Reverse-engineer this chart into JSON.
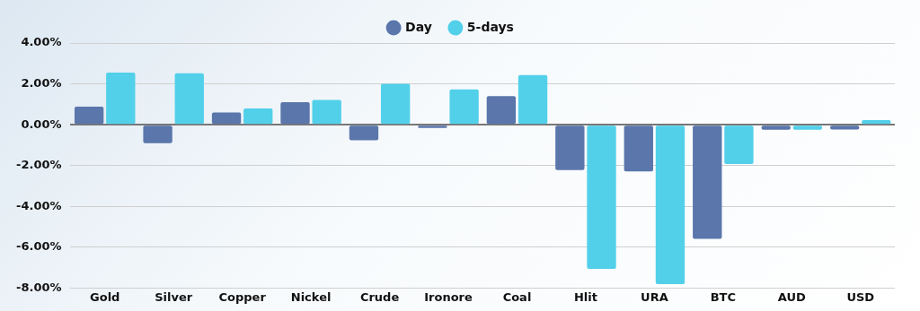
{
  "chart_data": {
    "type": "bar",
    "categories": [
      "Gold",
      "Silver",
      "Copper",
      "Nickel",
      "Crude",
      "Ironore",
      "Coal",
      "Hlit",
      "URA",
      "BTC",
      "AUD",
      "USD"
    ],
    "series": [
      {
        "name": "Day",
        "color": "#5a76ab",
        "values": [
          0.88,
          -0.91,
          0.6,
          1.1,
          -0.76,
          -0.16,
          1.4,
          -2.22,
          -2.29,
          -5.59,
          -0.25,
          -0.24
        ]
      },
      {
        "name": "5-days",
        "color": "#52d0ea",
        "values": [
          2.55,
          2.52,
          0.8,
          1.21,
          2.0,
          1.73,
          2.43,
          -7.06,
          -7.81,
          -1.92,
          -0.25,
          0.22
        ]
      }
    ],
    "ylim": [
      -8,
      4
    ],
    "yticks": [
      {
        "value": -8,
        "label": "-8.00%"
      },
      {
        "value": -6,
        "label": "-6.00%"
      },
      {
        "value": -4,
        "label": "-4.00%"
      },
      {
        "value": -2,
        "label": "-2.00%"
      },
      {
        "value": 0,
        "label": "0.00%"
      },
      {
        "value": 2,
        "label": "2.00%"
      },
      {
        "value": 4,
        "label": "4.00%"
      }
    ],
    "grid": "y",
    "legend": "top"
  }
}
